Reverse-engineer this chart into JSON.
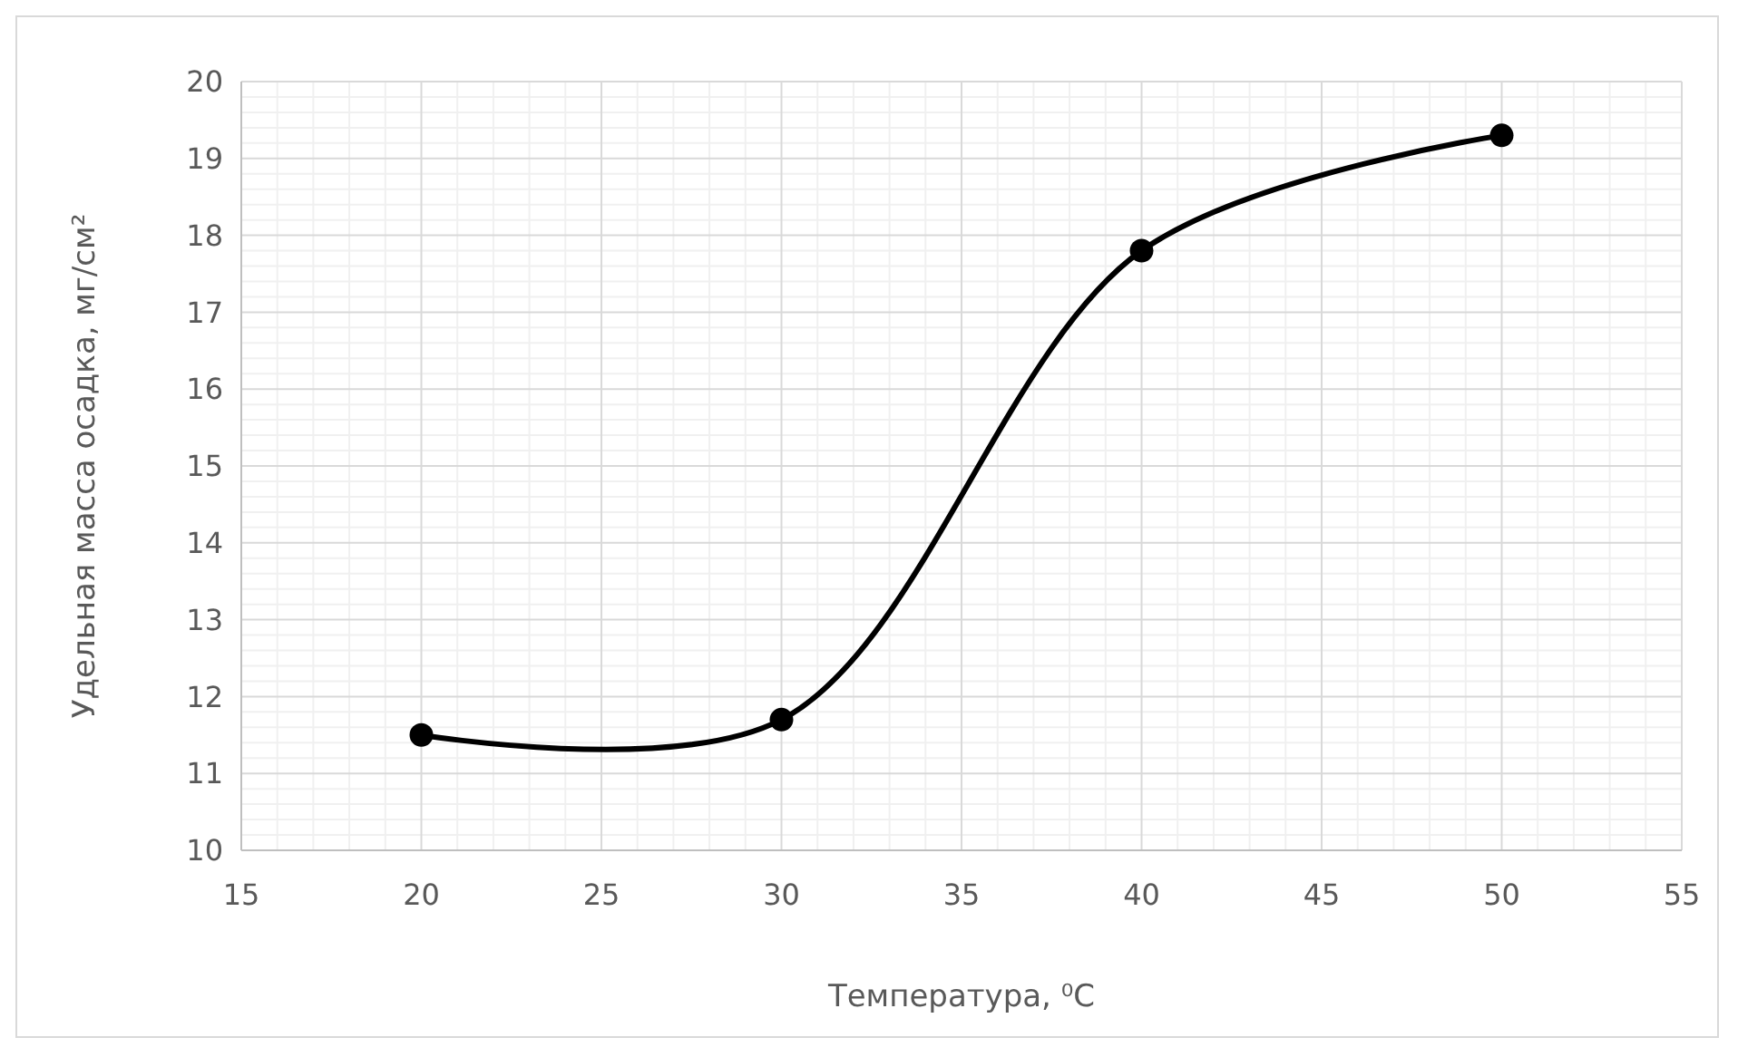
{
  "chart_data": {
    "type": "line",
    "xlabel": "Температура, ⁰С",
    "ylabel": "Удельная масса осадка, мг/см²",
    "x": [
      20,
      30,
      40,
      50
    ],
    "series": [
      {
        "color": "#000000",
        "values": [
          11.5,
          11.7,
          17.8,
          19.3
        ]
      }
    ],
    "xlim": [
      15,
      55
    ],
    "xticks": [
      15,
      20,
      25,
      30,
      35,
      40,
      45,
      50,
      55
    ],
    "ylim": [
      10,
      20
    ],
    "yticks": [
      10,
      11,
      12,
      13,
      14,
      15,
      16,
      17,
      18,
      19,
      20
    ],
    "grid": true,
    "marker": "circle",
    "line_style": "solid"
  }
}
